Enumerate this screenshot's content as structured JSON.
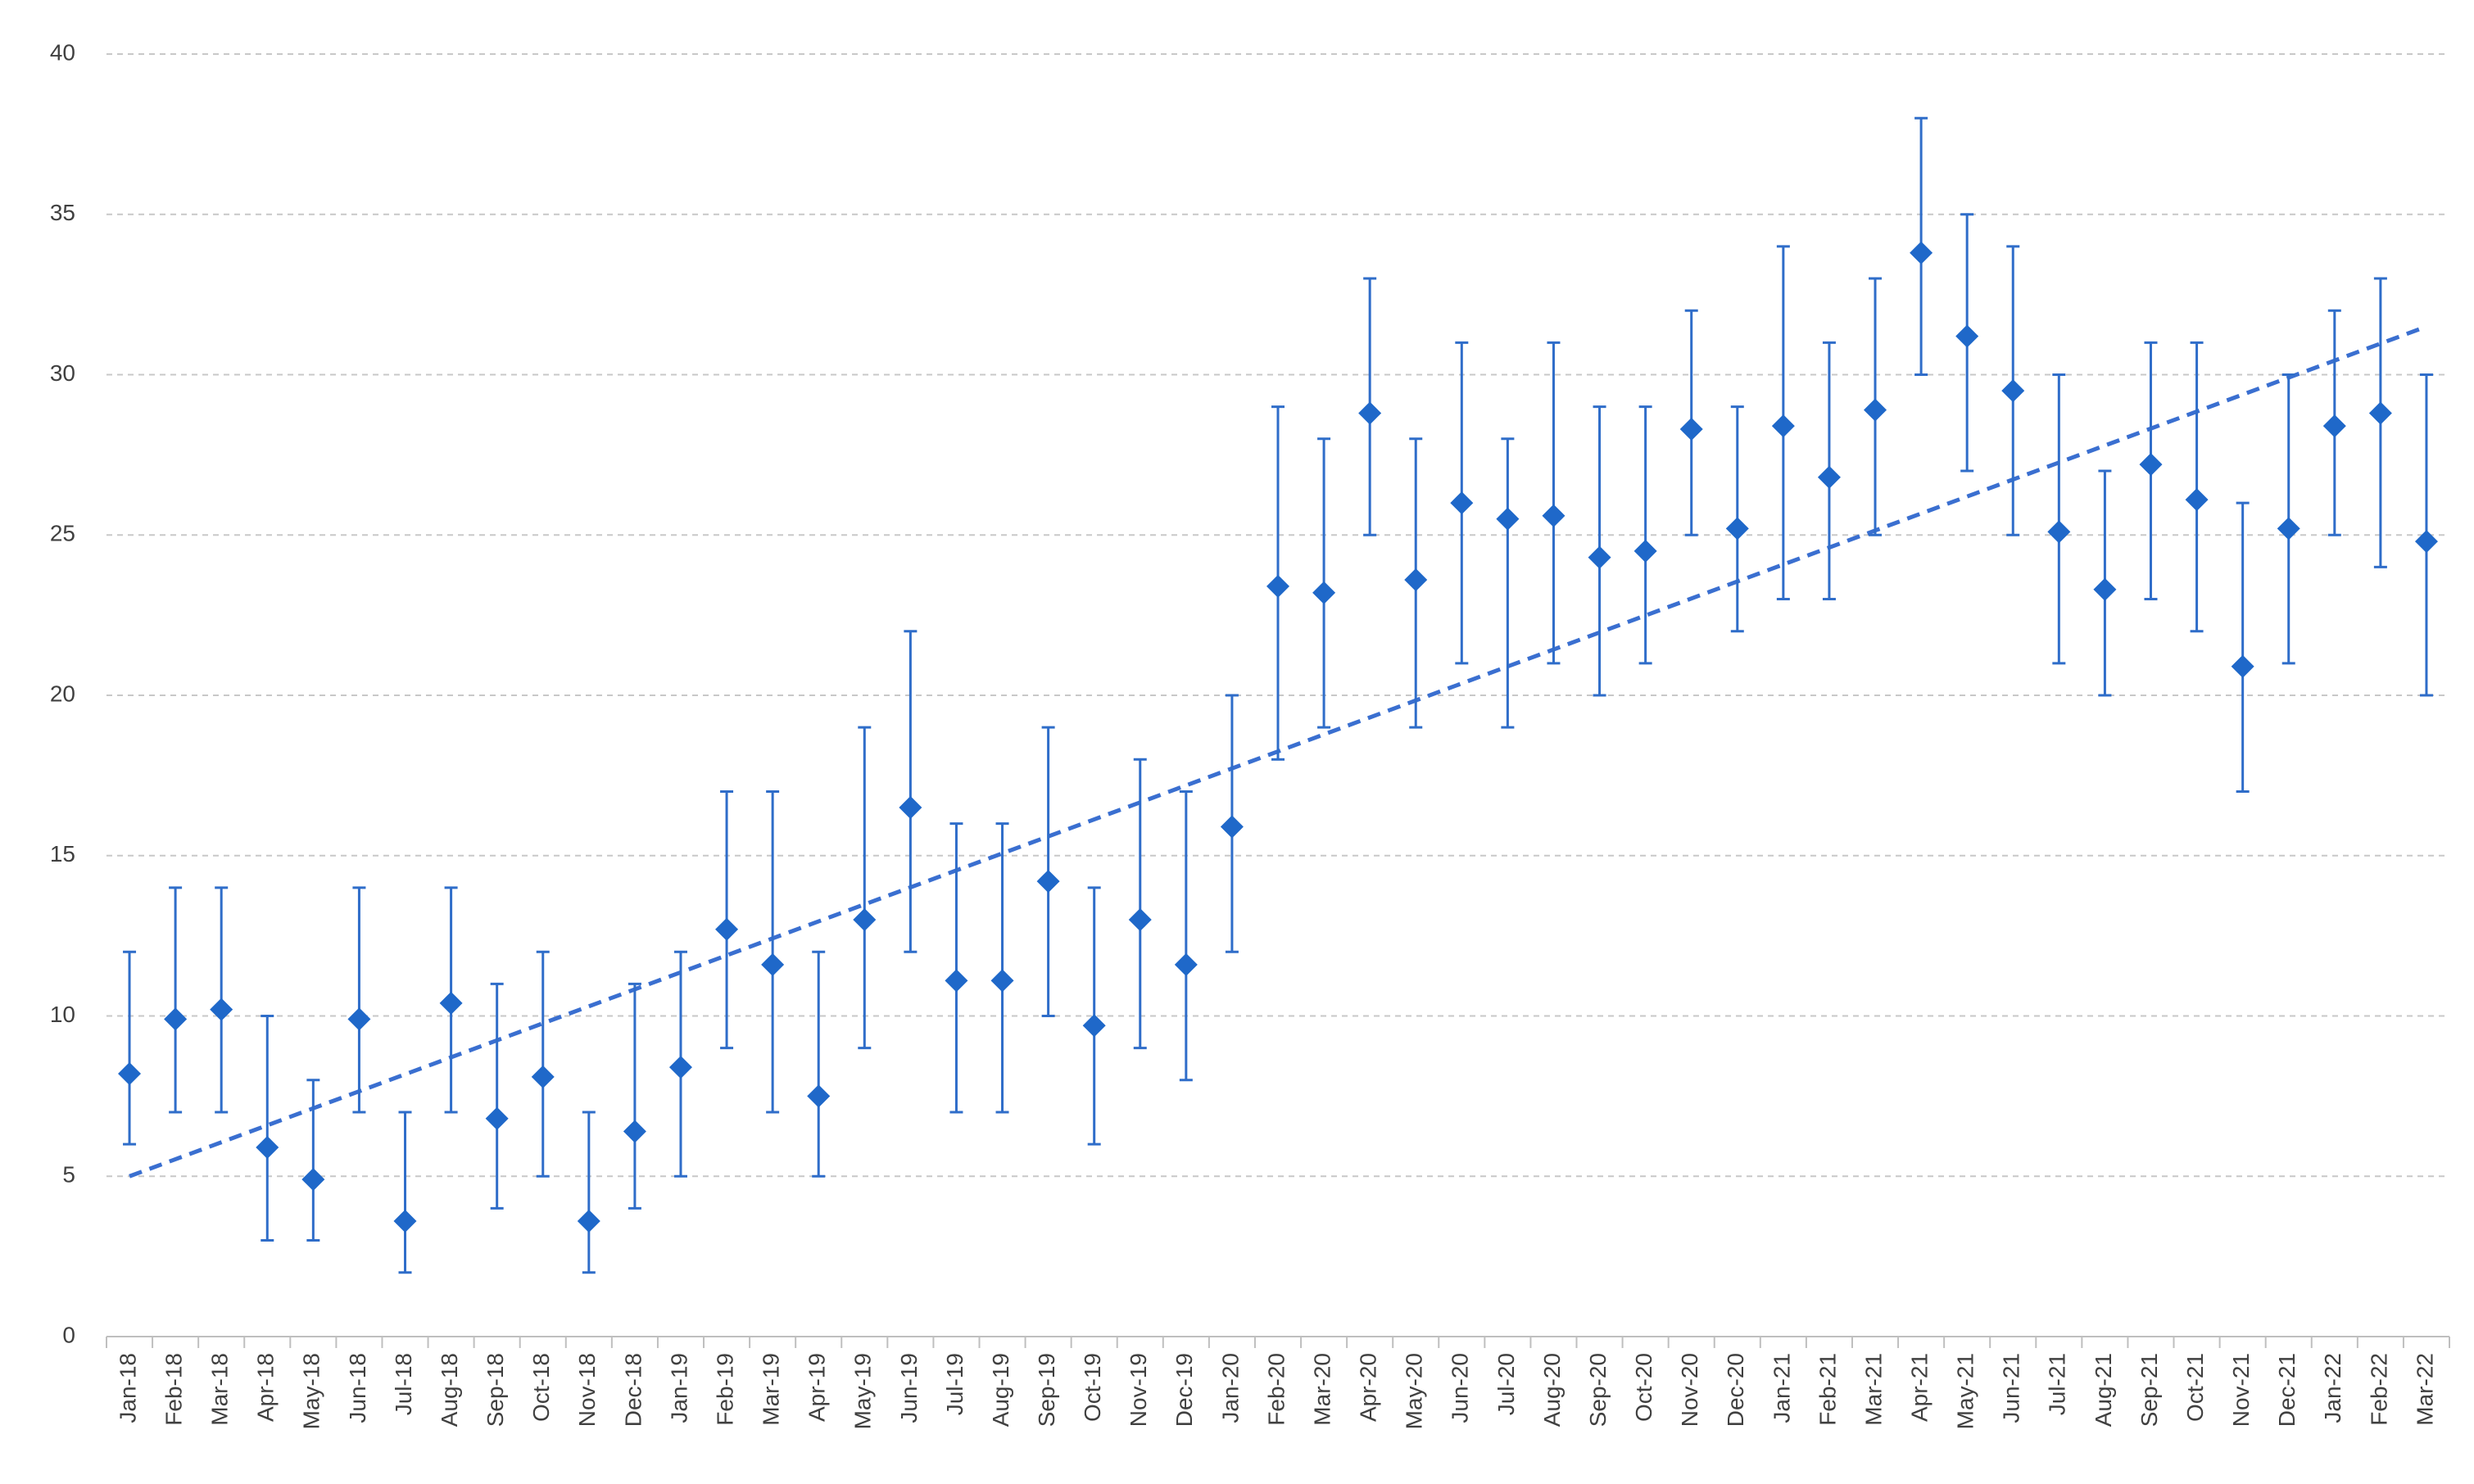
{
  "chart_data": {
    "type": "scatter",
    "title": "",
    "xlabel": "",
    "ylabel": "",
    "ylim": [
      0,
      40
    ],
    "y_ticks": [
      0,
      5,
      10,
      15,
      20,
      25,
      30,
      35,
      40
    ],
    "grid": true,
    "legend": "none",
    "marker": "diamond",
    "color": "#1f68c9",
    "categories": [
      "Jan-18",
      "Feb-18",
      "Mar-18",
      "Apr-18",
      "May-18",
      "Jun-18",
      "Jul-18",
      "Aug-18",
      "Sep-18",
      "Oct-18",
      "Nov-18",
      "Dec-18",
      "Jan-19",
      "Feb-19",
      "Mar-19",
      "Apr-19",
      "May-19",
      "Jun-19",
      "Jul-19",
      "Aug-19",
      "Sep-19",
      "Oct-19",
      "Nov-19",
      "Dec-19",
      "Jan-20",
      "Feb-20",
      "Mar-20",
      "Apr-20",
      "May-20",
      "Jun-20",
      "Jul-20",
      "Aug-20",
      "Sep-20",
      "Oct-20",
      "Nov-20",
      "Dec-20",
      "Jan-21",
      "Feb-21",
      "Mar-21",
      "Apr-21",
      "May-21",
      "Jun-21",
      "Jul-21",
      "Aug-21",
      "Sep-21",
      "Oct-21",
      "Nov-21",
      "Dec-21",
      "Jan-22",
      "Feb-22",
      "Mar-22"
    ],
    "values": [
      8.2,
      9.9,
      10.2,
      5.9,
      4.9,
      9.9,
      3.6,
      10.4,
      6.8,
      8.1,
      3.6,
      6.4,
      8.4,
      12.7,
      11.6,
      7.5,
      13.0,
      16.5,
      11.1,
      11.1,
      14.2,
      9.7,
      13.0,
      11.6,
      15.9,
      23.4,
      23.2,
      28.8,
      23.6,
      26.0,
      25.5,
      25.6,
      24.3,
      24.5,
      28.3,
      25.2,
      28.4,
      26.8,
      28.9,
      33.8,
      31.2,
      29.5,
      25.1,
      23.3,
      27.2,
      26.1,
      20.9,
      25.2,
      28.4,
      28.8,
      24.8
    ],
    "error_low": [
      6,
      7,
      7,
      3,
      3,
      7,
      2,
      7,
      4,
      5,
      2,
      4,
      5,
      9,
      7,
      5,
      9,
      12,
      7,
      7,
      10,
      6,
      9,
      8,
      12,
      18,
      19,
      25,
      19,
      21,
      19,
      21,
      20,
      21,
      25,
      22,
      23,
      23,
      25,
      30,
      27,
      25,
      21,
      20,
      23,
      22,
      17,
      21,
      25,
      24,
      20
    ],
    "error_high": [
      12,
      14,
      14,
      10,
      8,
      14,
      7,
      14,
      11,
      12,
      7,
      11,
      12,
      17,
      17,
      12,
      19,
      22,
      16,
      16,
      19,
      14,
      18,
      17,
      20,
      29,
      28,
      33,
      28,
      31,
      28,
      31,
      29,
      29,
      32,
      29,
      34,
      31,
      33,
      38,
      35,
      34,
      30,
      27,
      31,
      31,
      26,
      30,
      32,
      33,
      30
    ],
    "trendline": {
      "type": "linear",
      "style": "dashed",
      "start": 5.0,
      "end": 31.5
    }
  }
}
